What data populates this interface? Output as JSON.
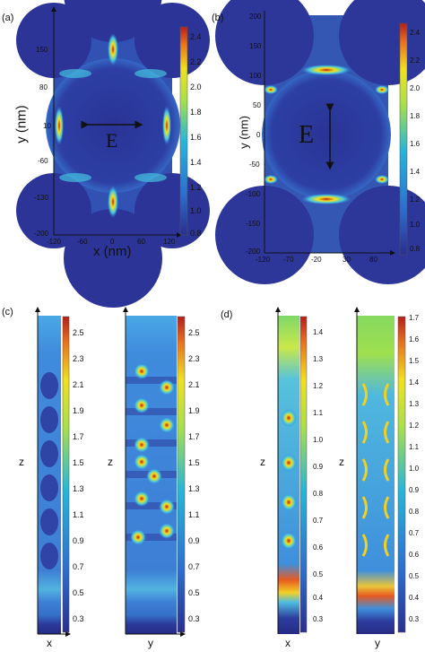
{
  "figure": {
    "panels": [
      {
        "id": "a",
        "label": "(a)"
      },
      {
        "id": "b",
        "label": "(b)"
      },
      {
        "id": "c",
        "label": "(c)"
      },
      {
        "id": "d",
        "label": "(d)"
      }
    ],
    "panel_a": {
      "xlabel": "x (nm)",
      "ylabel": "y (nm)",
      "field_label": "E",
      "field_direction": "horizontal",
      "xticks": [
        "-120",
        "-60",
        "0",
        "60",
        "120"
      ],
      "yticks": [
        "150",
        "80",
        "10",
        "-60",
        "-130",
        "-200"
      ],
      "colorbar_ticks": [
        "2.4",
        "2.2",
        "2.0",
        "1.8",
        "1.6",
        "1.4",
        "1.2",
        "1.0",
        "0.8"
      ]
    },
    "panel_b": {
      "ylabel": "y (nm)",
      "field_label": "E",
      "field_direction": "vertical",
      "xticks": [
        "-120",
        "-70",
        "-20",
        "30",
        "80"
      ],
      "yticks": [
        "200",
        "150",
        "100",
        "50",
        "0",
        "-50",
        "-100",
        "-150",
        "-200"
      ],
      "colorbar_ticks": [
        "2.4",
        "2.2",
        "2.0",
        "1.8",
        "1.6",
        "1.4",
        "1.2",
        "1.0",
        "0.8"
      ]
    },
    "panel_c": {
      "zlabel": "z",
      "left_xlabel": "x",
      "right_xlabel": "y",
      "colorbar_ticks": [
        "2.5",
        "2.3",
        "2.1",
        "1.9",
        "1.7",
        "1.5",
        "1.3",
        "1.1",
        "0.9",
        "0.7",
        "0.5",
        "0.3"
      ]
    },
    "panel_d": {
      "zlabel": "z",
      "left_xlabel": "x",
      "right_xlabel": "y",
      "colorbar_ticks_left": [
        "1.4",
        "1.3",
        "1.2",
        "1.1",
        "1.0",
        "0.9",
        "0.8",
        "0.7",
        "0.6",
        "0.5",
        "0.4",
        "0.3"
      ],
      "colorbar_ticks_right": [
        "1.7",
        "1.6",
        "1.5",
        "1.4",
        "1.3",
        "1.2",
        "1.1",
        "1.0",
        "0.9",
        "0.8",
        "0.7",
        "0.6",
        "0.5",
        "0.4",
        "0.3"
      ]
    },
    "colors": {
      "low": "#2a2f8f",
      "mid_low": "#2c6fd0",
      "mid": "#27b6d9",
      "mid_high": "#a9e04a",
      "high": "#f0e020",
      "peak": "#d7261e"
    }
  }
}
